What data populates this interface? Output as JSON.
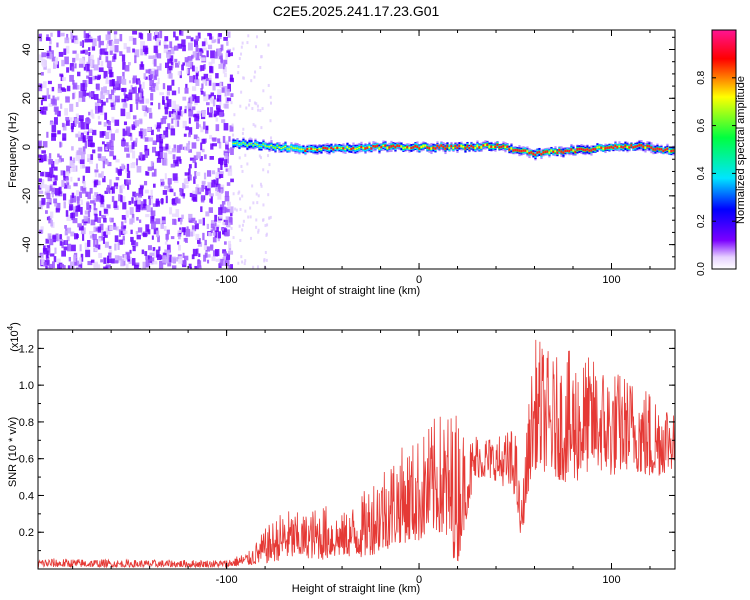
{
  "title": "C2E5.2025.241.17.23.G01",
  "chart_data": [
    {
      "type": "heatmap",
      "name": "spectrogram",
      "xlabel": "Height of straight line (km)",
      "ylabel": "Frequency (Hz)",
      "xlim": [
        -198,
        133
      ],
      "ylim": [
        -50,
        48
      ],
      "xticks": [
        -100,
        0,
        100
      ],
      "yticks": [
        -40,
        -20,
        0,
        20,
        40
      ],
      "xtick_labels": [
        "-100",
        "0",
        "100"
      ],
      "ytick_labels": [
        "-40",
        "-20",
        "0",
        "20",
        "40"
      ],
      "noise_region_x": [
        -198,
        -98
      ],
      "signal_band_hz": 0,
      "ridge": [
        [
          -97,
          1.5
        ],
        [
          -80,
          0.5
        ],
        [
          -60,
          -1
        ],
        [
          -40,
          -0.5
        ],
        [
          -20,
          0
        ],
        [
          0,
          0
        ],
        [
          20,
          0
        ],
        [
          40,
          0.5
        ],
        [
          55,
          -2
        ],
        [
          60,
          -3
        ],
        [
          65,
          -2
        ],
        [
          80,
          -1.5
        ],
        [
          100,
          0
        ],
        [
          115,
          0.5
        ],
        [
          133,
          -2
        ]
      ],
      "colorbar": {
        "label": "Normalized spectral amplitude",
        "range": [
          0,
          1
        ],
        "ticks": [
          0,
          0.2,
          0.4,
          0.6,
          0.8
        ],
        "tick_labels": [
          "0.0",
          "0.2",
          "0.4",
          "0.6",
          "0.8"
        ],
        "colors": [
          "#ffffff",
          "#7b00ff",
          "#0000ff",
          "#00e5ff",
          "#00ff40",
          "#ffff00",
          "#ff0000",
          "#ff00aa"
        ]
      }
    },
    {
      "type": "line",
      "name": "snr",
      "xlabel": "Height of straight line (km)",
      "ylabel": "SNR (10 * v/v)",
      "exponent_label": "(x10",
      "exponent_power": "4",
      "exponent_close": ")",
      "xlim": [
        -198,
        133
      ],
      "ylim": [
        0,
        1.3
      ],
      "xticks": [
        -100,
        0,
        100
      ],
      "yticks": [
        0.2,
        0.4,
        0.6,
        0.8,
        1.0,
        1.2
      ],
      "xtick_labels": [
        "-100",
        "0",
        "100"
      ],
      "ytick_labels": [
        "0.2",
        "0.4",
        "0.6",
        "0.8",
        "1.0",
        "1.2"
      ],
      "color": "#e53935",
      "envelope": [
        {
          "x": -198,
          "low": 0.01,
          "high": 0.06
        },
        {
          "x": -150,
          "low": 0.01,
          "high": 0.05
        },
        {
          "x": -100,
          "low": 0.01,
          "high": 0.05
        },
        {
          "x": -88,
          "low": 0.02,
          "high": 0.1
        },
        {
          "x": -80,
          "low": 0.03,
          "high": 0.22
        },
        {
          "x": -70,
          "low": 0.05,
          "high": 0.33
        },
        {
          "x": -60,
          "low": 0.06,
          "high": 0.3
        },
        {
          "x": -50,
          "low": 0.05,
          "high": 0.36
        },
        {
          "x": -40,
          "low": 0.07,
          "high": 0.3
        },
        {
          "x": -30,
          "low": 0.06,
          "high": 0.4
        },
        {
          "x": -20,
          "low": 0.09,
          "high": 0.58
        },
        {
          "x": -10,
          "low": 0.14,
          "high": 0.66
        },
        {
          "x": 0,
          "low": 0.15,
          "high": 0.72
        },
        {
          "x": 10,
          "low": 0.2,
          "high": 0.85
        },
        {
          "x": 20,
          "low": 0.02,
          "high": 0.88
        },
        {
          "x": 25,
          "low": 0.3,
          "high": 0.7
        },
        {
          "x": 30,
          "low": 0.5,
          "high": 0.75
        },
        {
          "x": 40,
          "low": 0.48,
          "high": 0.72
        },
        {
          "x": 50,
          "low": 0.4,
          "high": 0.78
        },
        {
          "x": 53,
          "low": 0.14,
          "high": 0.35
        },
        {
          "x": 58,
          "low": 0.5,
          "high": 1.05
        },
        {
          "x": 61,
          "low": 0.55,
          "high": 1.28
        },
        {
          "x": 70,
          "low": 0.5,
          "high": 1.15
        },
        {
          "x": 80,
          "low": 0.45,
          "high": 1.2
        },
        {
          "x": 90,
          "low": 0.55,
          "high": 1.15
        },
        {
          "x": 100,
          "low": 0.5,
          "high": 1.1
        },
        {
          "x": 110,
          "low": 0.55,
          "high": 1.05
        },
        {
          "x": 120,
          "low": 0.48,
          "high": 1.0
        },
        {
          "x": 133,
          "low": 0.55,
          "high": 0.92
        }
      ]
    }
  ]
}
